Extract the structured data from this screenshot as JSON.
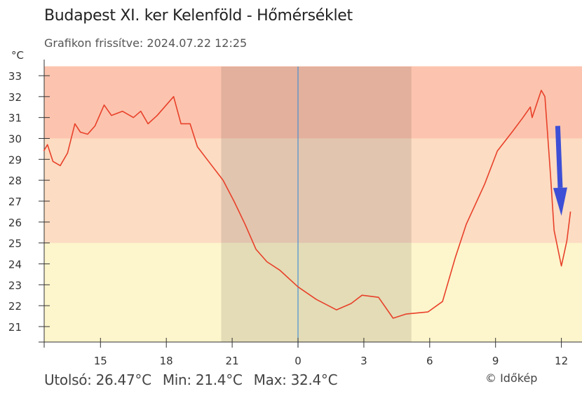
{
  "chart_data": {
    "type": "line",
    "title": "Budapest XI. ker Kelenföld - Hőmérséklet",
    "subtitle": "Grafikon frissítve: 2024.07.22 12:25",
    "ylabel": "°C",
    "ylim": [
      20.25,
      33.45
    ],
    "yticks": [
      21,
      22,
      23,
      24,
      25,
      26,
      27,
      28,
      29,
      30,
      31,
      32,
      33
    ],
    "xlim": [
      "2024-07-21 12:25",
      "2024-07-22 12:40"
    ],
    "xticks": [
      {
        "time": "2024-07-21 15:00",
        "label": "15"
      },
      {
        "time": "2024-07-21 18:00",
        "label": "18"
      },
      {
        "time": "2024-07-21 21:00",
        "label": "21"
      },
      {
        "time": "2024-07-22 00:00",
        "label": "0"
      },
      {
        "time": "2024-07-22 03:00",
        "label": "3"
      },
      {
        "time": "2024-07-22 06:00",
        "label": "6"
      },
      {
        "time": "2024-07-22 09:00",
        "label": "9"
      },
      {
        "time": "2024-07-22 12:00",
        "label": "12"
      }
    ],
    "grid": false,
    "bands": [
      {
        "from": 30,
        "to": 33.45,
        "color": "#fcc4ae"
      },
      {
        "from": 25,
        "to": 30,
        "color": "#fcdcc2"
      },
      {
        "from": 20.25,
        "to": 25,
        "color": "#fdf5cb"
      }
    ],
    "night": {
      "from": "2024-07-21 20:30",
      "to": "2024-07-22 05:10",
      "color": "#000000",
      "opacity": 0.1
    },
    "midnight_line": {
      "time": "2024-07-22 00:00",
      "color": "#4a90d0"
    },
    "series": [
      {
        "color": "#e8402a",
        "points": [
          [
            "2024-07-21 12:25",
            29.4
          ],
          [
            "2024-07-21 12:35",
            29.7
          ],
          [
            "2024-07-21 12:50",
            28.9
          ],
          [
            "2024-07-21 13:10",
            28.7
          ],
          [
            "2024-07-21 13:30",
            29.3
          ],
          [
            "2024-07-21 13:50",
            30.7
          ],
          [
            "2024-07-21 14:05",
            30.3
          ],
          [
            "2024-07-21 14:25",
            30.2
          ],
          [
            "2024-07-21 14:45",
            30.6
          ],
          [
            "2024-07-21 15:10",
            31.6
          ],
          [
            "2024-07-21 15:30",
            31.1
          ],
          [
            "2024-07-21 16:00",
            31.3
          ],
          [
            "2024-07-21 16:30",
            31.0
          ],
          [
            "2024-07-21 16:50",
            31.3
          ],
          [
            "2024-07-21 17:10",
            30.7
          ],
          [
            "2024-07-21 17:35",
            31.1
          ],
          [
            "2024-07-21 18:20",
            32.0
          ],
          [
            "2024-07-21 18:40",
            30.7
          ],
          [
            "2024-07-21 19:05",
            30.7
          ],
          [
            "2024-07-21 19:25",
            29.6
          ],
          [
            "2024-07-21 20:00",
            28.8
          ],
          [
            "2024-07-21 20:35",
            28.0
          ],
          [
            "2024-07-21 21:05",
            27.0
          ],
          [
            "2024-07-21 21:35",
            25.9
          ],
          [
            "2024-07-21 22:05",
            24.7
          ],
          [
            "2024-07-21 22:35",
            24.1
          ],
          [
            "2024-07-21 23:10",
            23.7
          ],
          [
            "2024-07-22 00:00",
            22.9
          ],
          [
            "2024-07-22 00:50",
            22.3
          ],
          [
            "2024-07-22 01:45",
            21.8
          ],
          [
            "2024-07-22 02:25",
            22.1
          ],
          [
            "2024-07-22 02:55",
            22.5
          ],
          [
            "2024-07-22 03:40",
            22.4
          ],
          [
            "2024-07-22 04:20",
            21.4
          ],
          [
            "2024-07-22 04:55",
            21.6
          ],
          [
            "2024-07-22 05:55",
            21.7
          ],
          [
            "2024-07-22 06:35",
            22.2
          ],
          [
            "2024-07-22 07:10",
            24.3
          ],
          [
            "2024-07-22 07:40",
            25.9
          ],
          [
            "2024-07-22 08:30",
            27.8
          ],
          [
            "2024-07-22 09:05",
            29.4
          ],
          [
            "2024-07-22 09:45",
            30.3
          ],
          [
            "2024-07-22 10:15",
            31.0
          ],
          [
            "2024-07-22 10:35",
            31.5
          ],
          [
            "2024-07-22 10:40",
            31.0
          ],
          [
            "2024-07-22 11:05",
            32.3
          ],
          [
            "2024-07-22 11:15",
            32.0
          ],
          [
            "2024-07-22 11:30",
            28.3
          ],
          [
            "2024-07-22 11:40",
            25.6
          ],
          [
            "2024-07-22 12:00",
            23.9
          ],
          [
            "2024-07-22 12:15",
            25.1
          ],
          [
            "2024-07-22 12:25",
            26.5
          ]
        ]
      }
    ],
    "annotations": [
      {
        "type": "arrow",
        "color": "#3d4fd6",
        "from": [
          "2024-07-22 11:50",
          30.6
        ],
        "to": [
          "2024-07-22 12:00",
          26.3
        ]
      }
    ]
  },
  "stats": {
    "last": "Utolsó: 26.47°C",
    "min": "Min: 21.4°C",
    "max": "Max: 32.4°C"
  },
  "credit": "© Időkép"
}
